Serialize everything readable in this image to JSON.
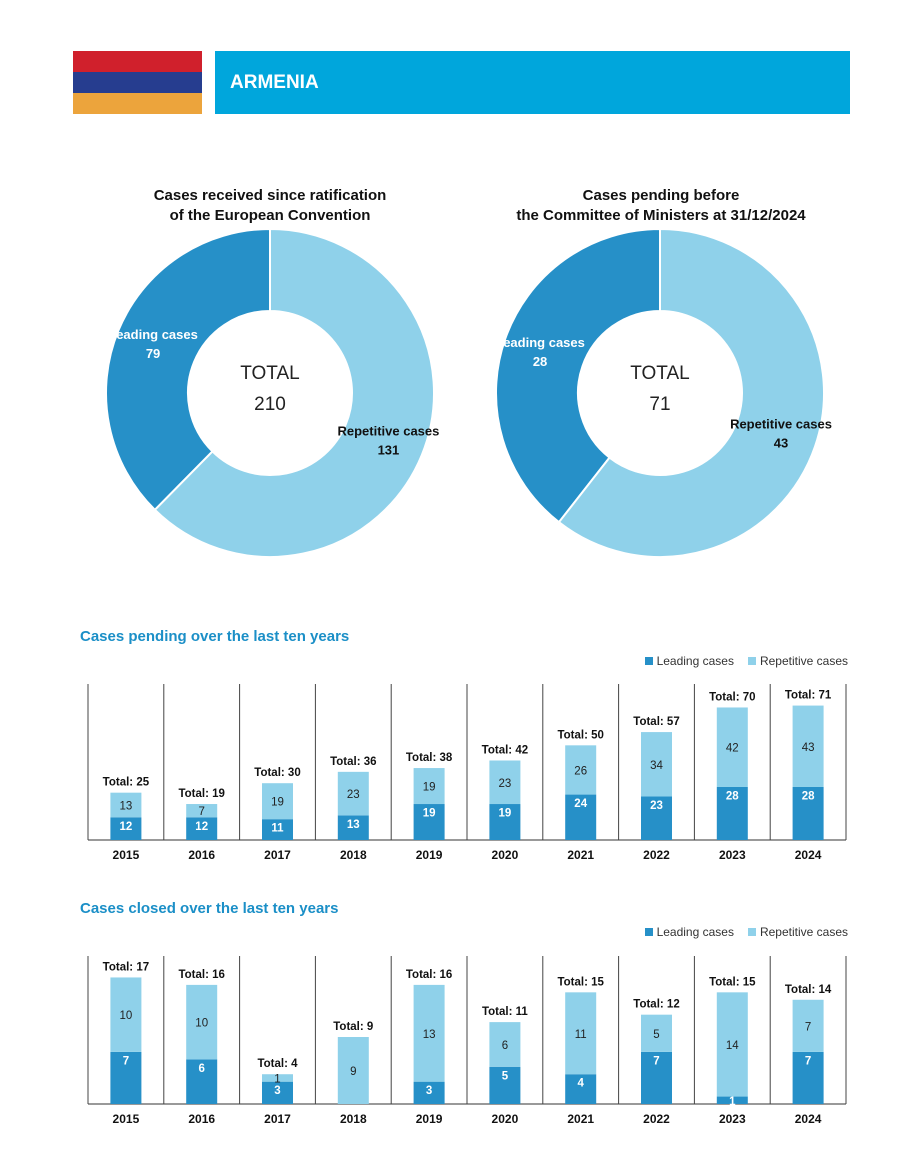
{
  "header": {
    "country": "ARMENIA",
    "flag_colors": [
      "#d0202c",
      "#263d8f",
      "#eca43c"
    ]
  },
  "colors": {
    "leading": "#2690c8",
    "repetitive": "#8fd1ea",
    "banner": "#00a6dc"
  },
  "legend": {
    "leading": "Leading cases",
    "repetitive": "Repetitive cases"
  },
  "chart_data": [
    {
      "type": "pie",
      "title_line1": "Cases received since ratification",
      "title_line2": "of the European Convention",
      "center_label": "TOTAL",
      "total": "210",
      "slices": [
        {
          "name": "Leading cases",
          "value": 79
        },
        {
          "name": "Repetitive cases",
          "value": 131
        }
      ]
    },
    {
      "type": "pie",
      "title_line1": "Cases pending before",
      "title_line2": "the Committee of Ministers at 31/12/2024",
      "center_label": "TOTAL",
      "total": "71",
      "slices": [
        {
          "name": "Leading cases",
          "value": 28
        },
        {
          "name": "Repetitive cases",
          "value": 43
        }
      ]
    },
    {
      "type": "bar",
      "stacked": true,
      "title": "Cases pending over the last ten years",
      "categories": [
        "2015",
        "2016",
        "2017",
        "2018",
        "2019",
        "2020",
        "2021",
        "2022",
        "2023",
        "2024"
      ],
      "series": [
        {
          "name": "Leading cases",
          "values": [
            12,
            12,
            11,
            13,
            19,
            19,
            24,
            23,
            28,
            28
          ]
        },
        {
          "name": "Repetitive cases",
          "values": [
            13,
            7,
            19,
            23,
            19,
            23,
            26,
            34,
            42,
            43
          ]
        }
      ],
      "totals": [
        25,
        19,
        30,
        36,
        38,
        42,
        50,
        57,
        70,
        71
      ],
      "total_prefix": "Total: ",
      "ylim": [
        0,
        75
      ]
    },
    {
      "type": "bar",
      "stacked": true,
      "title": "Cases closed over the last ten years",
      "categories": [
        "2015",
        "2016",
        "2017",
        "2018",
        "2019",
        "2020",
        "2021",
        "2022",
        "2023",
        "2024"
      ],
      "series": [
        {
          "name": "Leading cases",
          "values": [
            7,
            6,
            3,
            0,
            3,
            5,
            4,
            7,
            1,
            7
          ]
        },
        {
          "name": "Repetitive cases",
          "values": [
            10,
            10,
            1,
            9,
            13,
            6,
            11,
            5,
            14,
            7
          ]
        }
      ],
      "totals": [
        17,
        16,
        4,
        9,
        16,
        11,
        15,
        12,
        15,
        14
      ],
      "total_prefix": "Total: ",
      "ylim": [
        0,
        18
      ]
    }
  ]
}
